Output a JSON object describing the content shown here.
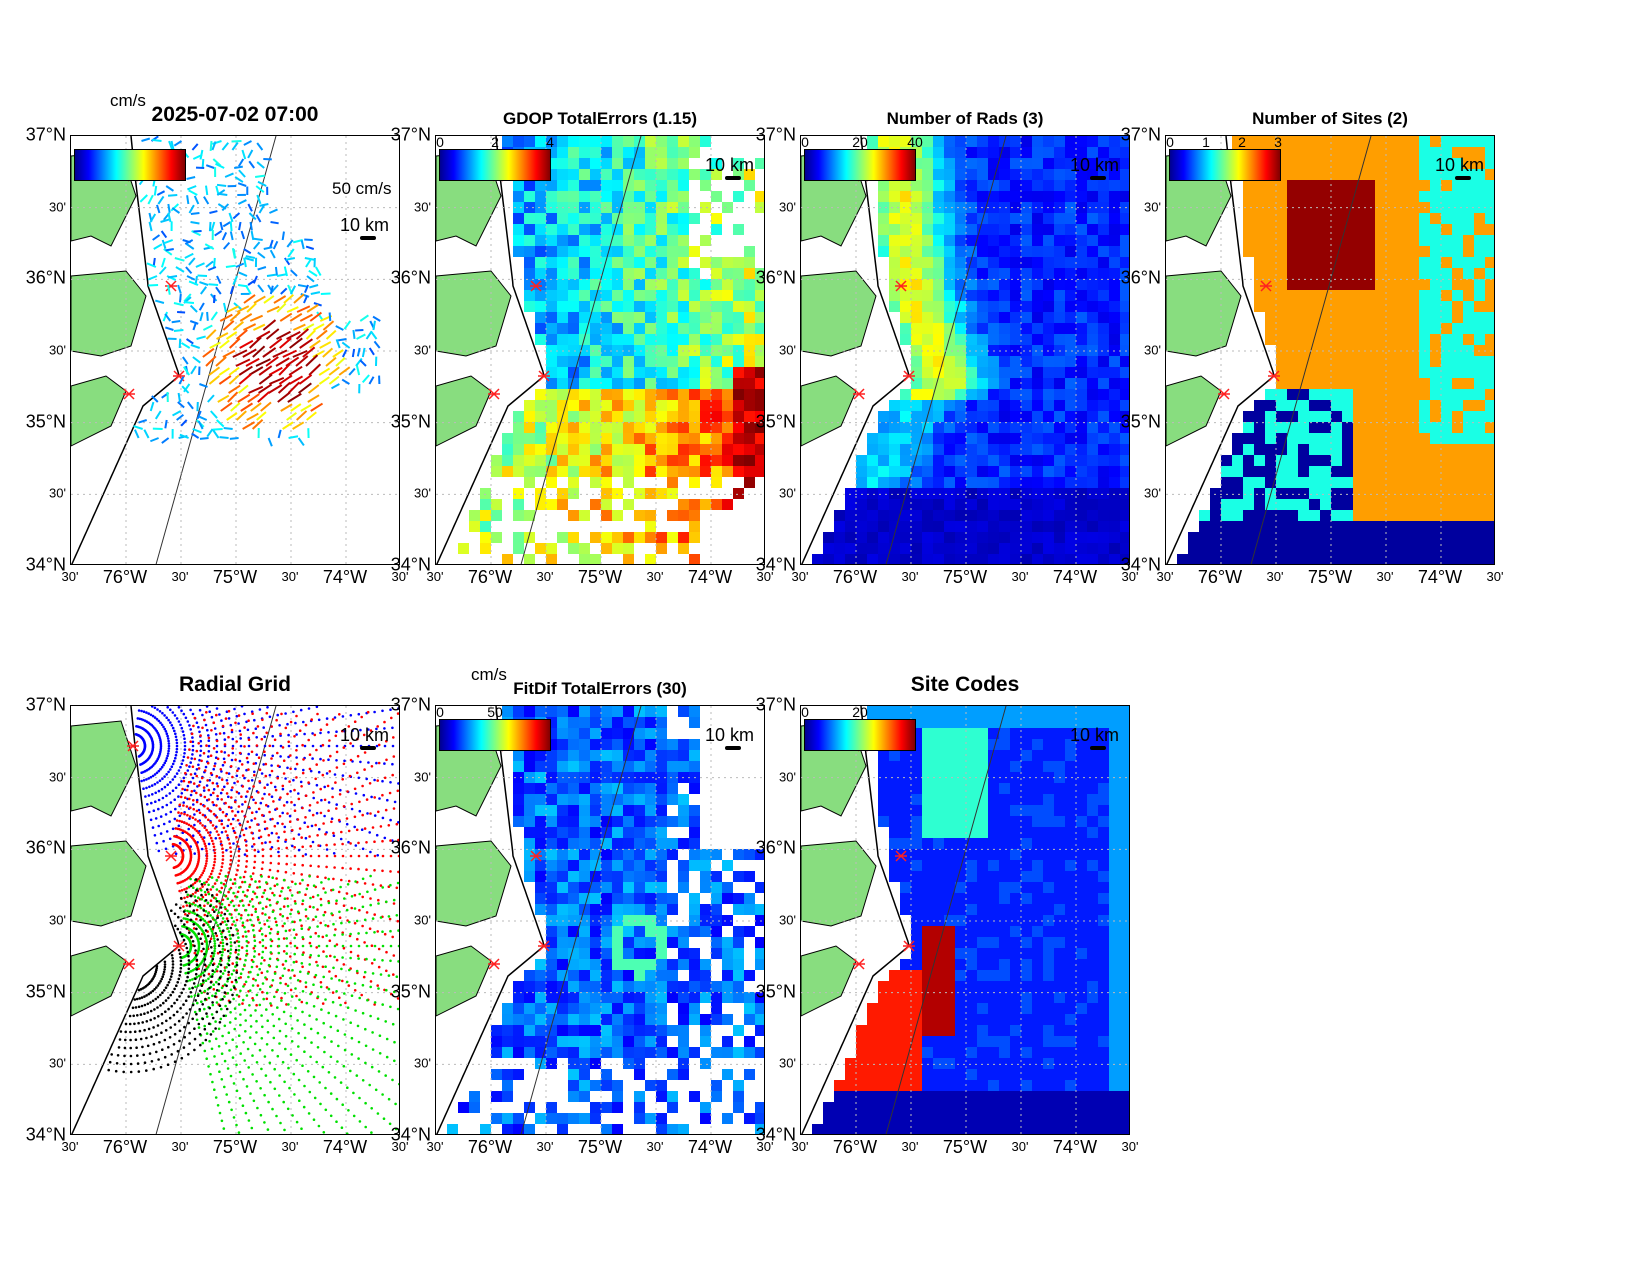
{
  "figure": {
    "timestamp": "2025-07-02 07:00",
    "lat_labels": [
      "37°N",
      "30'",
      "36°N",
      "30'",
      "35°N",
      "30'",
      "34°N"
    ],
    "lon_labels": [
      "30'",
      "76°W",
      "30'",
      "75°W",
      "30'",
      "74°W",
      "30'"
    ],
    "scale_label": "10 km",
    "colors": {
      "land": "#88dd7f",
      "coast": "#000000",
      "site_marker": "#ff2020"
    }
  },
  "panels": {
    "vectors": {
      "title": "2025-07-02 07:00",
      "colorbar_unit": "cm/s",
      "vector_scale_label": "50 cm/s",
      "scale_label": "10 km"
    },
    "gdop": {
      "title": "GDOP TotalErrors (1.15)",
      "colorbar_ticks": [
        "0",
        "2",
        "4"
      ],
      "scale_label": "10 km"
    },
    "nrads": {
      "title": "Number of Rads (3)",
      "colorbar_ticks": [
        "0",
        "20",
        "40"
      ],
      "scale_label": "10 km"
    },
    "nsites": {
      "title": "Number of Sites (2)",
      "colorbar_ticks": [
        "0",
        "1",
        "2",
        "3"
      ],
      "scale_label": "10 km"
    },
    "radial_grid": {
      "title": "Radial Grid",
      "scale_label": "10 km",
      "site_colors": [
        "#0000ff",
        "#ff0000",
        "#00e000",
        "#000000"
      ]
    },
    "fitdif": {
      "title": "FitDif TotalErrors (30)",
      "colorbar_unit": "cm/s",
      "colorbar_ticks": [
        "0",
        "50"
      ],
      "scale_label": "10 km"
    },
    "sitecodes": {
      "title": "Site Codes",
      "colorbar_ticks": [
        "0",
        "20"
      ],
      "scale_label": "10 km"
    }
  }
}
